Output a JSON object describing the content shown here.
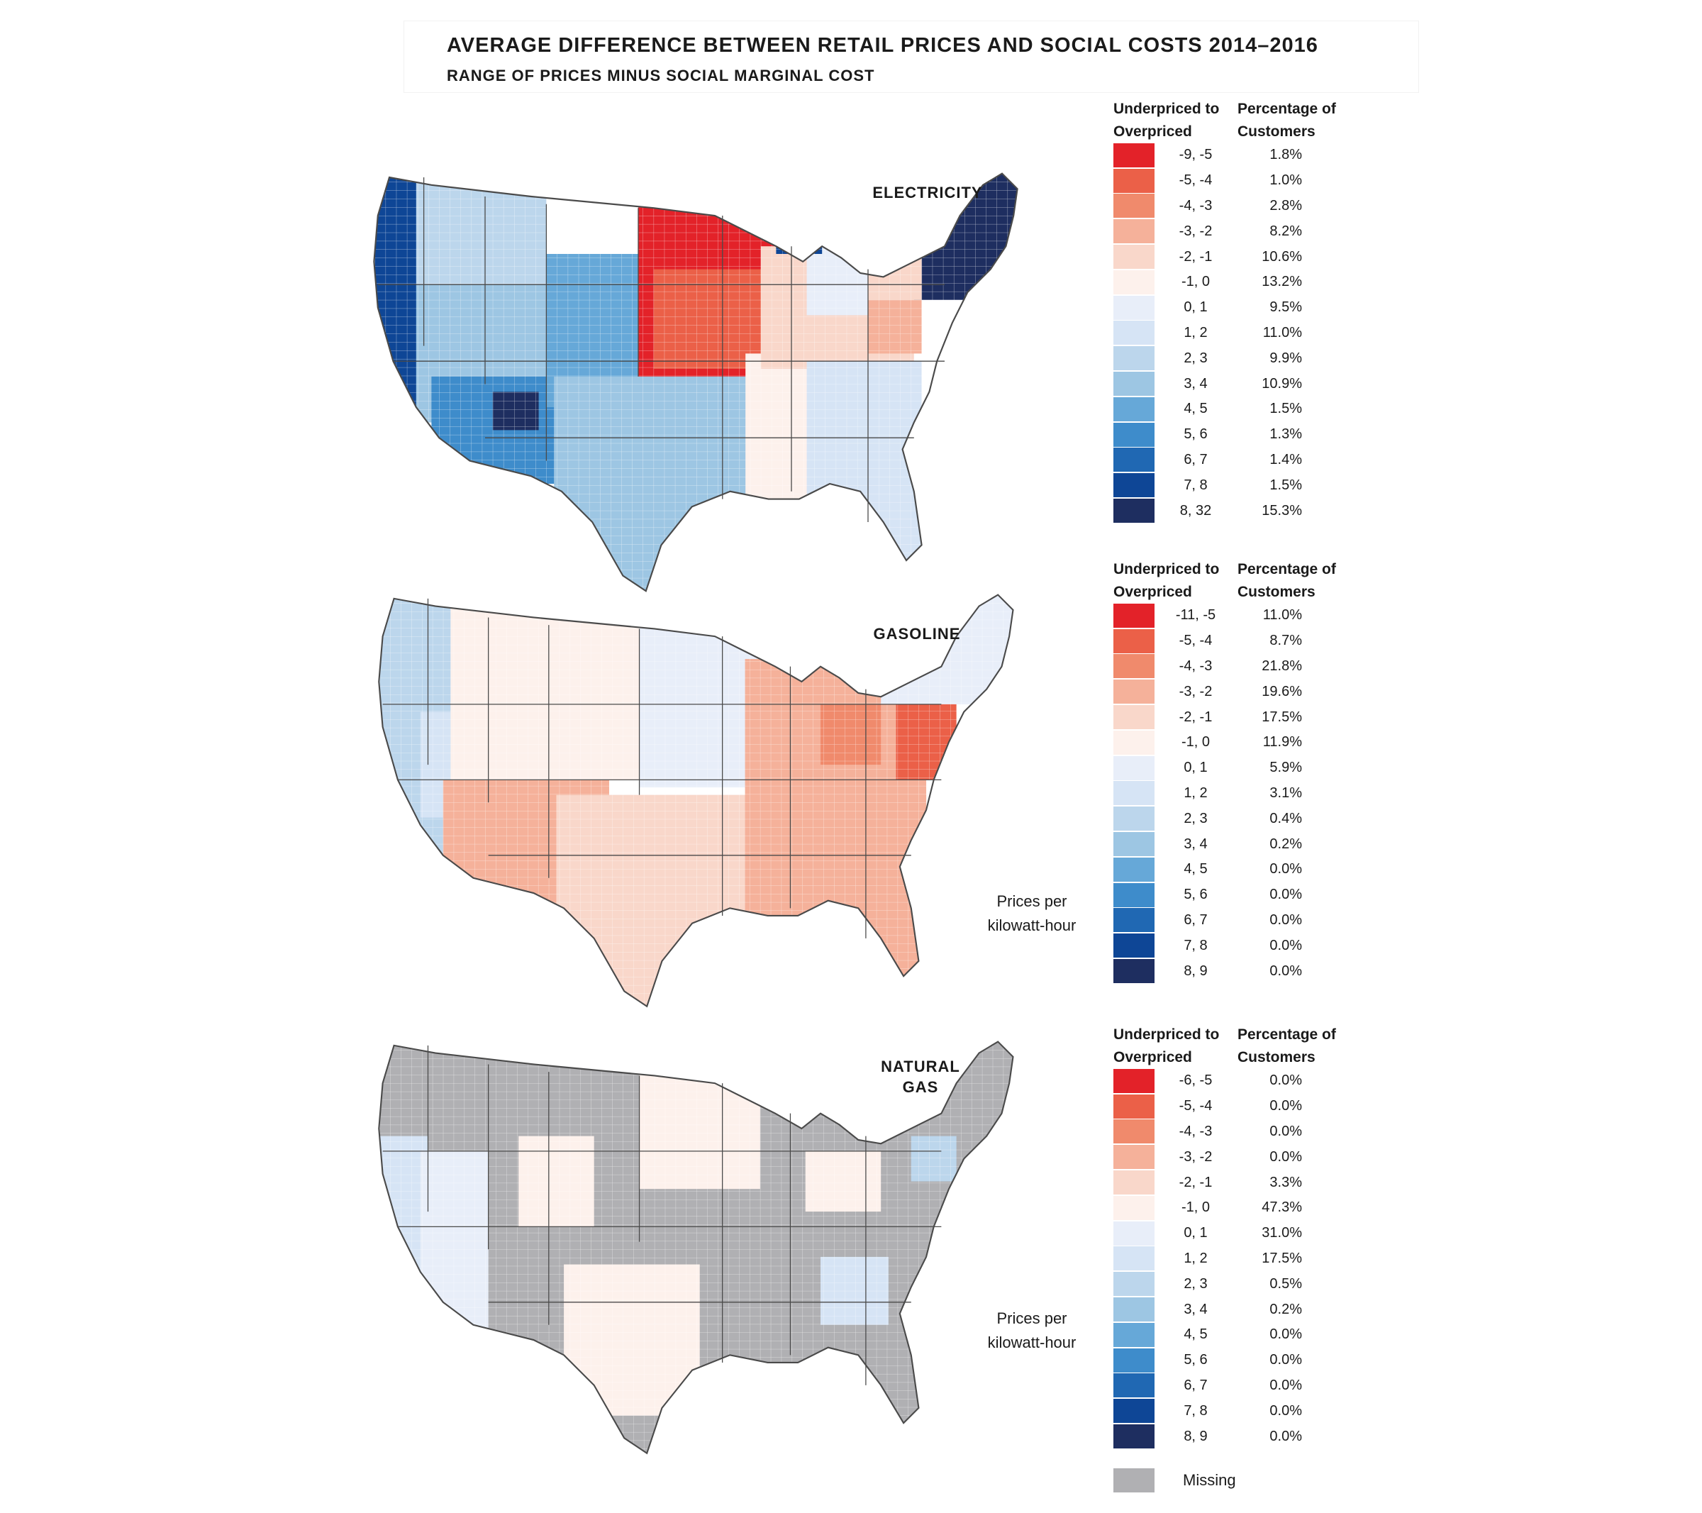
{
  "figure": {
    "title": "AVERAGE DIFFERENCE BETWEEN RETAIL PRICES AND SOCIAL COSTS 2014–2016",
    "subtitle": "RANGE OF PRICES MINUS SOCIAL MARGINAL COST"
  },
  "units_note": "Prices per kilowatt-hour",
  "legend_headers": {
    "range": "Underpriced to Overpriced",
    "share": "Percentage of Customers"
  },
  "colors": {
    "scale": [
      "#e32229",
      "#eb6048",
      "#f08a6c",
      "#f5b19a",
      "#f9d7ca",
      "#fdf1ec",
      "#e8eef9",
      "#d6e4f5",
      "#bcd6ec",
      "#9dc6e3",
      "#66a8d8",
      "#3e8ccb",
      "#2068b3",
      "#0e4696",
      "#1e2e60"
    ],
    "missing": "#b0b0b3",
    "boundary": "#4a4a4a"
  },
  "chart_data": [
    {
      "type": "choropleth",
      "label": "ELECTRICITY",
      "categories": [
        "-9, -5",
        "-5, -4",
        "-4, -3",
        "-3, -2",
        "-2, -1",
        "-1, 0",
        "0, 1",
        "1, 2",
        "2, 3",
        "3, 4",
        "4, 5",
        "5, 6",
        "6, 7",
        "7, 8",
        "8, 32"
      ],
      "percentages": [
        "1.8%",
        "1.0%",
        "2.8%",
        "8.2%",
        "10.6%",
        "13.2%",
        "9.5%",
        "11.0%",
        "9.9%",
        "10.9%",
        "1.5%",
        "1.3%",
        "1.4%",
        "1.5%",
        "15.3%"
      ]
    },
    {
      "type": "choropleth",
      "label": "GASOLINE",
      "categories": [
        "-11, -5",
        "-5, -4",
        "-4, -3",
        "-3, -2",
        "-2, -1",
        "-1, 0",
        "0, 1",
        "1, 2",
        "2, 3",
        "3, 4",
        "4, 5",
        "5, 6",
        "6, 7",
        "7, 8",
        "8, 9"
      ],
      "percentages": [
        "11.0%",
        "8.7%",
        "21.8%",
        "19.6%",
        "17.5%",
        "11.9%",
        "5.9%",
        "3.1%",
        "0.4%",
        "0.2%",
        "0.0%",
        "0.0%",
        "0.0%",
        "0.0%",
        "0.0%"
      ]
    },
    {
      "type": "choropleth",
      "label": "NATURAL GAS",
      "categories": [
        "-6, -5",
        "-5, -4",
        "-4, -3",
        "-3, -2",
        "-2, -1",
        "-1, 0",
        "0, 1",
        "1, 2",
        "2, 3",
        "3, 4",
        "4, 5",
        "5, 6",
        "6, 7",
        "7, 8",
        "8, 9"
      ],
      "percentages": [
        "0.0%",
        "0.0%",
        "0.0%",
        "0.0%",
        "3.3%",
        "47.3%",
        "31.0%",
        "17.5%",
        "0.5%",
        "0.2%",
        "0.0%",
        "0.0%",
        "0.0%",
        "0.0%",
        "0.0%"
      ],
      "missing_label": "Missing"
    }
  ]
}
